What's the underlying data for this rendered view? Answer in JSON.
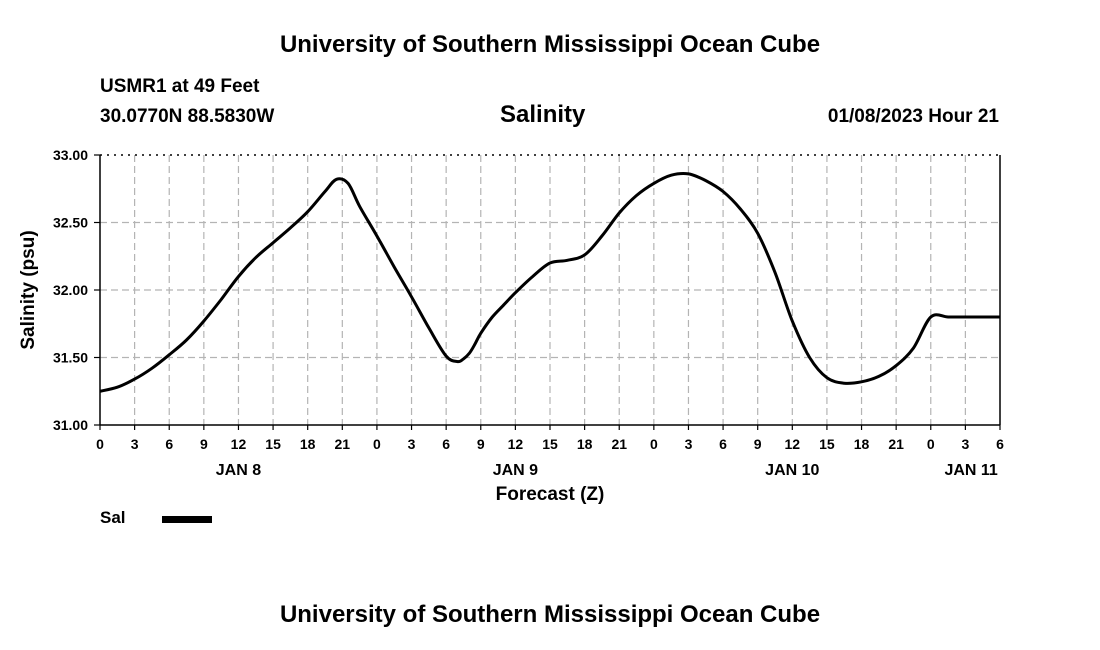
{
  "header": {
    "title_top": "University of Southern Mississippi Ocean Cube",
    "station": "USMR1 at 49 Feet",
    "coords": "30.0770N  88.5830W",
    "datetime": "01/08/2023 Hour 21",
    "title_bottom": "University of Southern Mississippi Ocean Cube"
  },
  "chart_data": {
    "type": "line",
    "title": "Salinity",
    "xlabel": "Forecast (Z)",
    "ylabel": "Salinity (psu)",
    "ylim": [
      31.0,
      33.0
    ],
    "y_ticks": [
      31.0,
      31.5,
      32.0,
      32.5,
      33.0
    ],
    "y_tick_labels": [
      "31.00",
      "31.50",
      "32.00",
      "32.50",
      "33.00"
    ],
    "x_range_hours": [
      0,
      78
    ],
    "x_tick_hours": [
      0,
      3,
      6,
      9,
      12,
      15,
      18,
      21,
      24,
      27,
      30,
      33,
      36,
      39,
      42,
      45,
      48,
      51,
      54,
      57,
      60,
      63,
      66,
      69,
      72,
      75,
      78
    ],
    "x_tick_labels": [
      "0",
      "3",
      "6",
      "9",
      "12",
      "15",
      "18",
      "21",
      "0",
      "3",
      "6",
      "9",
      "12",
      "15",
      "18",
      "21",
      "0",
      "3",
      "6",
      "9",
      "12",
      "15",
      "18",
      "21",
      "0",
      "3",
      "6"
    ],
    "date_labels": [
      {
        "text": "JAN 8",
        "hour": 12
      },
      {
        "text": "JAN 9",
        "hour": 36
      },
      {
        "text": "JAN 10",
        "hour": 60
      },
      {
        "text": "JAN 11",
        "hour": 75.5
      }
    ],
    "grid": true,
    "legend": [
      {
        "label": "Sal",
        "color": "#000000"
      }
    ],
    "series": [
      {
        "name": "Sal",
        "x": [
          0,
          1.5,
          3,
          4.5,
          6,
          7.5,
          9,
          10.5,
          12,
          13.5,
          15,
          16.5,
          18,
          19.5,
          20.5,
          21.5,
          22.5,
          24,
          25.5,
          27,
          28.5,
          30,
          31,
          31.5,
          32,
          32.5,
          33,
          34,
          35,
          36,
          37.5,
          39,
          40.5,
          42,
          43.5,
          45,
          46.5,
          48,
          49.5,
          51,
          52.5,
          54,
          55.5,
          57,
          58.5,
          60,
          61.5,
          63,
          64.5,
          66,
          67.5,
          69,
          70.5,
          72,
          73.5,
          75,
          76.5,
          78
        ],
        "values": [
          31.25,
          31.28,
          31.34,
          31.42,
          31.52,
          31.63,
          31.77,
          31.93,
          32.1,
          32.24,
          32.35,
          32.46,
          32.58,
          32.73,
          32.82,
          32.79,
          32.62,
          32.4,
          32.17,
          31.95,
          31.72,
          31.51,
          31.47,
          31.49,
          31.53,
          31.6,
          31.68,
          31.8,
          31.89,
          31.98,
          32.1,
          32.2,
          32.22,
          32.26,
          32.4,
          32.57,
          32.7,
          32.79,
          32.85,
          32.86,
          32.81,
          32.73,
          32.6,
          32.42,
          32.13,
          31.77,
          31.5,
          31.35,
          31.31,
          31.32,
          31.36,
          31.44,
          31.57,
          31.8,
          31.8,
          31.8,
          31.8,
          31.8
        ]
      }
    ]
  }
}
